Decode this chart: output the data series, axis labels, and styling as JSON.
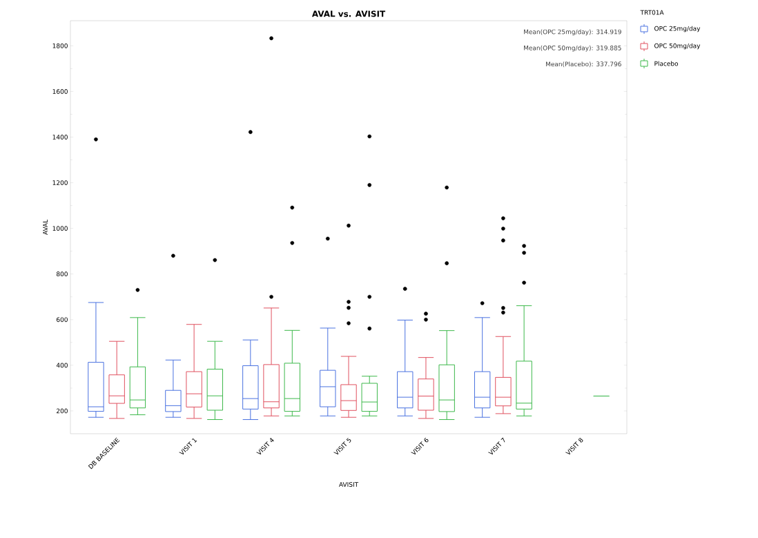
{
  "chart_data": {
    "type": "box",
    "title": "AVAL vs. AVISIT",
    "xlabel": "AVISIT",
    "ylabel": "AVAL",
    "legend_title": "TRT01A",
    "legend": "top right",
    "marker": "circle",
    "grid": false,
    "annotations": [
      "Mean(OPC 25mg/day): 314.919",
      "Mean(OPC 50mg/day): 319.885",
      "Mean(Placebo): 337.796"
    ],
    "categories": [
      "DB BASELINE",
      "VISIT 1",
      "VISIT 4",
      "VISIT 5",
      "VISIT 6",
      "VISIT 7",
      "VISIT 8"
    ],
    "ylim": [
      100,
      1910
    ],
    "yticks": [
      200,
      400,
      600,
      800,
      1000,
      1200,
      1400,
      1600,
      1800
    ],
    "series": [
      {
        "name": "OPC 25mg/day",
        "color": "#4a72e0",
        "boxes": [
          {
            "low": 172,
            "q1": 198,
            "median": 218,
            "q3": 413,
            "high": 675,
            "outliers": [
              1390
            ]
          },
          {
            "low": 172,
            "q1": 197,
            "median": 223,
            "q3": 290,
            "high": 423,
            "outliers": [
              880
            ]
          },
          {
            "low": 162,
            "q1": 208,
            "median": 254,
            "q3": 398,
            "high": 511,
            "outliers": [
              1422
            ]
          },
          {
            "low": 178,
            "q1": 218,
            "median": 306,
            "q3": 378,
            "high": 563,
            "outliers": [
              955
            ]
          },
          {
            "low": 178,
            "q1": 213,
            "median": 260,
            "q3": 372,
            "high": 598,
            "outliers": [
              735
            ]
          },
          {
            "low": 172,
            "q1": 213,
            "median": 260,
            "q3": 372,
            "high": 609,
            "outliers": [
              672
            ]
          },
          null
        ]
      },
      {
        "name": "OPC 50mg/day",
        "color": "#e0505f",
        "boxes": [
          {
            "low": 167,
            "q1": 233,
            "median": 266,
            "q3": 358,
            "high": 505
          },
          {
            "low": 167,
            "q1": 217,
            "median": 275,
            "q3": 372,
            "high": 579
          },
          {
            "low": 178,
            "q1": 213,
            "median": 240,
            "q3": 403,
            "high": 651,
            "outliers": [
              1833,
              700
            ]
          },
          {
            "low": 172,
            "q1": 202,
            "median": 245,
            "q3": 315,
            "high": 439,
            "outliers": [
              1012,
              678,
              652,
              584
            ]
          },
          {
            "low": 167,
            "q1": 203,
            "median": 265,
            "q3": 340,
            "high": 434,
            "outliers": [
              626,
              600
            ]
          },
          {
            "low": 188,
            "q1": 222,
            "median": 260,
            "q3": 347,
            "high": 526,
            "outliers": [
              1044,
              999,
              947,
              651,
              631
            ]
          },
          null
        ]
      },
      {
        "name": "Placebo",
        "color": "#3cb84a",
        "boxes": [
          {
            "low": 183,
            "q1": 213,
            "median": 248,
            "q3": 393,
            "high": 609,
            "outliers": [
              730
            ]
          },
          {
            "low": 162,
            "q1": 203,
            "median": 266,
            "q3": 383,
            "high": 505,
            "outliers": [
              861
            ]
          },
          {
            "low": 178,
            "q1": 198,
            "median": 254,
            "q3": 409,
            "high": 553,
            "outliers": [
              1091,
              936
            ]
          },
          {
            "low": 178,
            "q1": 198,
            "median": 239,
            "q3": 321,
            "high": 352,
            "outliers": [
              1403,
              1190,
              700,
              561
            ]
          },
          {
            "low": 162,
            "q1": 197,
            "median": 248,
            "q3": 402,
            "high": 552,
            "outliers": [
              1179,
              847
            ]
          },
          {
            "low": 178,
            "q1": 208,
            "median": 234,
            "q3": 418,
            "high": 661,
            "outliers": [
              923,
              893,
              762
            ]
          },
          {
            "low": 265,
            "q1": 265,
            "median": 265,
            "q3": 265,
            "high": 265
          }
        ]
      }
    ]
  }
}
